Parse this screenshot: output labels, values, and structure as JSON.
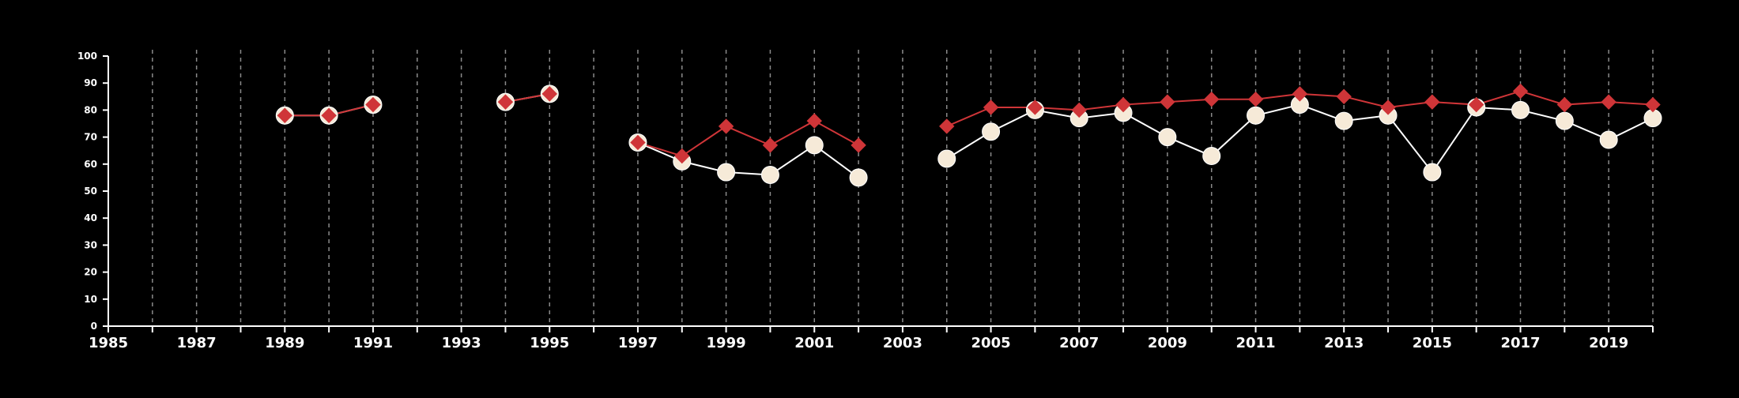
{
  "chart_data": {
    "type": "line",
    "title": "",
    "xlabel": "",
    "ylabel": "",
    "xlim": [
      1985,
      2020
    ],
    "ylim": [
      0,
      100
    ],
    "x_ticks": [
      1985,
      1987,
      1989,
      1991,
      1993,
      1995,
      1997,
      1999,
      2001,
      2003,
      2005,
      2007,
      2009,
      2011,
      2013,
      2015,
      2017,
      2019
    ],
    "y_ticks": [
      0,
      10,
      20,
      30,
      40,
      50,
      60,
      70,
      80,
      90,
      100
    ],
    "grid": "vertical dashed lines at every year",
    "legend": "none",
    "colors": {
      "background": "#000000",
      "axis": "#ffffff",
      "grid": "#8a8a8a",
      "series_a_line": "#ffffff",
      "series_a_marker": "#f6ead8",
      "series_b": "#cf3538"
    },
    "series": [
      {
        "marker": "circle",
        "points": [
          [
            1989,
            78
          ],
          [
            1990,
            78
          ],
          [
            1991,
            82
          ],
          [
            1994,
            83
          ],
          [
            1995,
            86
          ],
          [
            1997,
            68
          ],
          [
            1998,
            61
          ],
          [
            1999,
            57
          ],
          [
            2000,
            56
          ],
          [
            2001,
            67
          ],
          [
            2002,
            55
          ],
          [
            2004,
            62
          ],
          [
            2005,
            72
          ],
          [
            2006,
            80
          ],
          [
            2007,
            77
          ],
          [
            2008,
            79
          ],
          [
            2009,
            70
          ],
          [
            2010,
            63
          ],
          [
            2011,
            78
          ],
          [
            2012,
            82
          ],
          [
            2013,
            76
          ],
          [
            2014,
            78
          ],
          [
            2015,
            57
          ],
          [
            2016,
            81
          ],
          [
            2017,
            80
          ],
          [
            2018,
            76
          ],
          [
            2019,
            69
          ],
          [
            2020,
            77
          ]
        ]
      },
      {
        "marker": "diamond",
        "points": [
          [
            1989,
            78
          ],
          [
            1990,
            78
          ],
          [
            1991,
            82
          ],
          [
            1994,
            83
          ],
          [
            1995,
            86
          ],
          [
            1997,
            68
          ],
          [
            1998,
            63
          ],
          [
            1999,
            74
          ],
          [
            2000,
            67
          ],
          [
            2001,
            76
          ],
          [
            2002,
            67
          ],
          [
            2004,
            74
          ],
          [
            2005,
            81
          ],
          [
            2006,
            81
          ],
          [
            2007,
            80
          ],
          [
            2008,
            82
          ],
          [
            2009,
            83
          ],
          [
            2010,
            84
          ],
          [
            2011,
            84
          ],
          [
            2012,
            86
          ],
          [
            2013,
            85
          ],
          [
            2014,
            81
          ],
          [
            2015,
            83
          ],
          [
            2016,
            82
          ],
          [
            2017,
            87
          ],
          [
            2018,
            82
          ],
          [
            2019,
            83
          ],
          [
            2020,
            82
          ]
        ]
      }
    ]
  }
}
